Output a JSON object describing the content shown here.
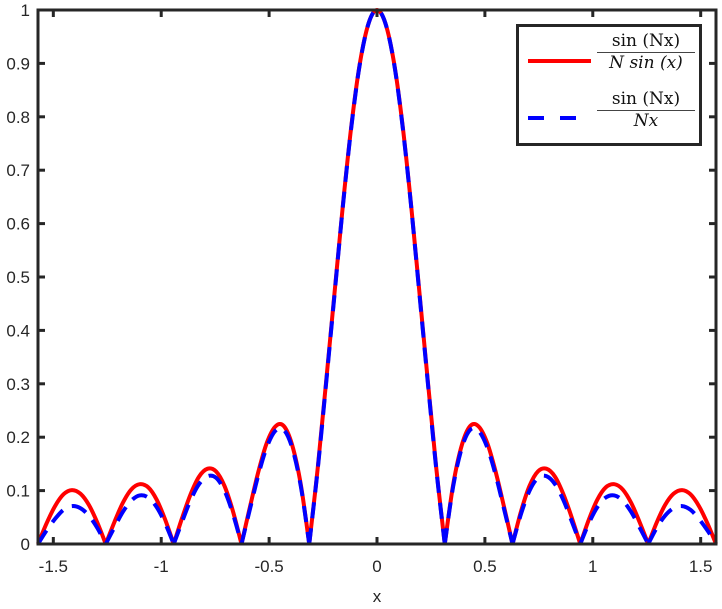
{
  "chart_data": {
    "type": "line",
    "title": "",
    "xlabel": "x",
    "ylabel": "",
    "xlim": [
      -1.571,
      1.571
    ],
    "ylim": [
      0,
      1
    ],
    "grid": false,
    "legend_placement": "top-right",
    "xticks": [
      "-1.5",
      "-1",
      "-0.5",
      "0",
      "0.5",
      "1",
      "1.5"
    ],
    "xtick_values": [
      -1.5,
      -1,
      -0.5,
      0,
      0.5,
      1,
      1.5
    ],
    "yticks": [
      "0",
      "0.1",
      "0.2",
      "0.3",
      "0.4",
      "0.5",
      "0.6",
      "0.7",
      "0.8",
      "0.9",
      "1"
    ],
    "ytick_values": [
      0,
      0.1,
      0.2,
      0.3,
      0.4,
      0.5,
      0.6,
      0.7,
      0.8,
      0.9,
      1
    ],
    "x": [
      -1.571,
      -1.532,
      -1.492,
      -1.453,
      -1.414,
      -1.374,
      -1.335,
      -1.296,
      -1.257,
      -1.217,
      -1.178,
      -1.139,
      -1.1,
      -1.06,
      -1.021,
      -0.982,
      -0.942,
      -0.903,
      -0.864,
      -0.825,
      -0.785,
      -0.746,
      -0.707,
      -0.668,
      -0.628,
      -0.589,
      -0.55,
      -0.511,
      -0.471,
      -0.432,
      -0.393,
      -0.353,
      -0.314,
      -0.275,
      -0.236,
      -0.196,
      -0.157,
      -0.118,
      -0.079,
      -0.039,
      0,
      0.039,
      0.079,
      0.118,
      0.157,
      0.196,
      0.236,
      0.275,
      0.314,
      0.353,
      0.393,
      0.432,
      0.471,
      0.511,
      0.55,
      0.589,
      0.628,
      0.668,
      0.707,
      0.746,
      0.785,
      0.825,
      0.864,
      0.903,
      0.942,
      0.982,
      1.021,
      1.06,
      1.1,
      1.139,
      1.178,
      1.217,
      1.257,
      1.296,
      1.335,
      1.374,
      1.414,
      1.453,
      1.492,
      1.532,
      1.571
    ],
    "series": [
      {
        "name": "sin(Nx) / (N sin(x))",
        "legend_numerator": "sin (Nx)",
        "legend_denominator": "N sin (x)",
        "color": "#ff0000",
        "style": "solid",
        "values": [
          0,
          0.038,
          0.071,
          0.093,
          0.101,
          0.094,
          0.073,
          0.04,
          0,
          0.041,
          0.077,
          0.102,
          0.112,
          0.106,
          0.083,
          0.046,
          0,
          0.049,
          0.093,
          0.126,
          0.141,
          0.136,
          0.109,
          0.062,
          0,
          0.069,
          0.135,
          0.189,
          0.22,
          0.221,
          0.185,
          0.111,
          0,
          0.141,
          0.303,
          0.474,
          0.639,
          0.786,
          0.901,
          0.975,
          1,
          0.975,
          0.901,
          0.786,
          0.639,
          0.474,
          0.303,
          0.141,
          0,
          0.111,
          0.185,
          0.221,
          0.22,
          0.189,
          0.135,
          0.069,
          0,
          0.062,
          0.109,
          0.136,
          0.141,
          0.126,
          0.093,
          0.049,
          0,
          0.046,
          0.083,
          0.106,
          0.112,
          0.102,
          0.077,
          0.041,
          0,
          0.04,
          0.073,
          0.094,
          0.101,
          0.093,
          0.071,
          0.038,
          0
        ]
      },
      {
        "name": "sin(Nx) / (Nx)",
        "legend_numerator": "sin (Nx)",
        "legend_denominator": "Nx",
        "color": "#0000ff",
        "style": "dashed",
        "values": [
          0,
          0.025,
          0.047,
          0.064,
          0.071,
          0.067,
          0.053,
          0.03,
          0,
          0.031,
          0.06,
          0.081,
          0.091,
          0.087,
          0.069,
          0.039,
          0,
          0.042,
          0.082,
          0.112,
          0.127,
          0.124,
          0.1,
          0.057,
          0,
          0.065,
          0.129,
          0.181,
          0.212,
          0.214,
          0.18,
          0.108,
          0,
          0.139,
          0.3,
          0.471,
          0.637,
          0.784,
          0.9,
          0.975,
          1,
          0.975,
          0.9,
          0.784,
          0.637,
          0.471,
          0.3,
          0.139,
          0,
          0.108,
          0.18,
          0.214,
          0.212,
          0.181,
          0.129,
          0.065,
          0,
          0.057,
          0.1,
          0.124,
          0.127,
          0.112,
          0.082,
          0.042,
          0,
          0.039,
          0.069,
          0.087,
          0.091,
          0.081,
          0.06,
          0.031,
          0,
          0.03,
          0.053,
          0.067,
          0.071,
          0.064,
          0.047,
          0.025,
          0
        ]
      }
    ],
    "axis_color": "#262626"
  }
}
